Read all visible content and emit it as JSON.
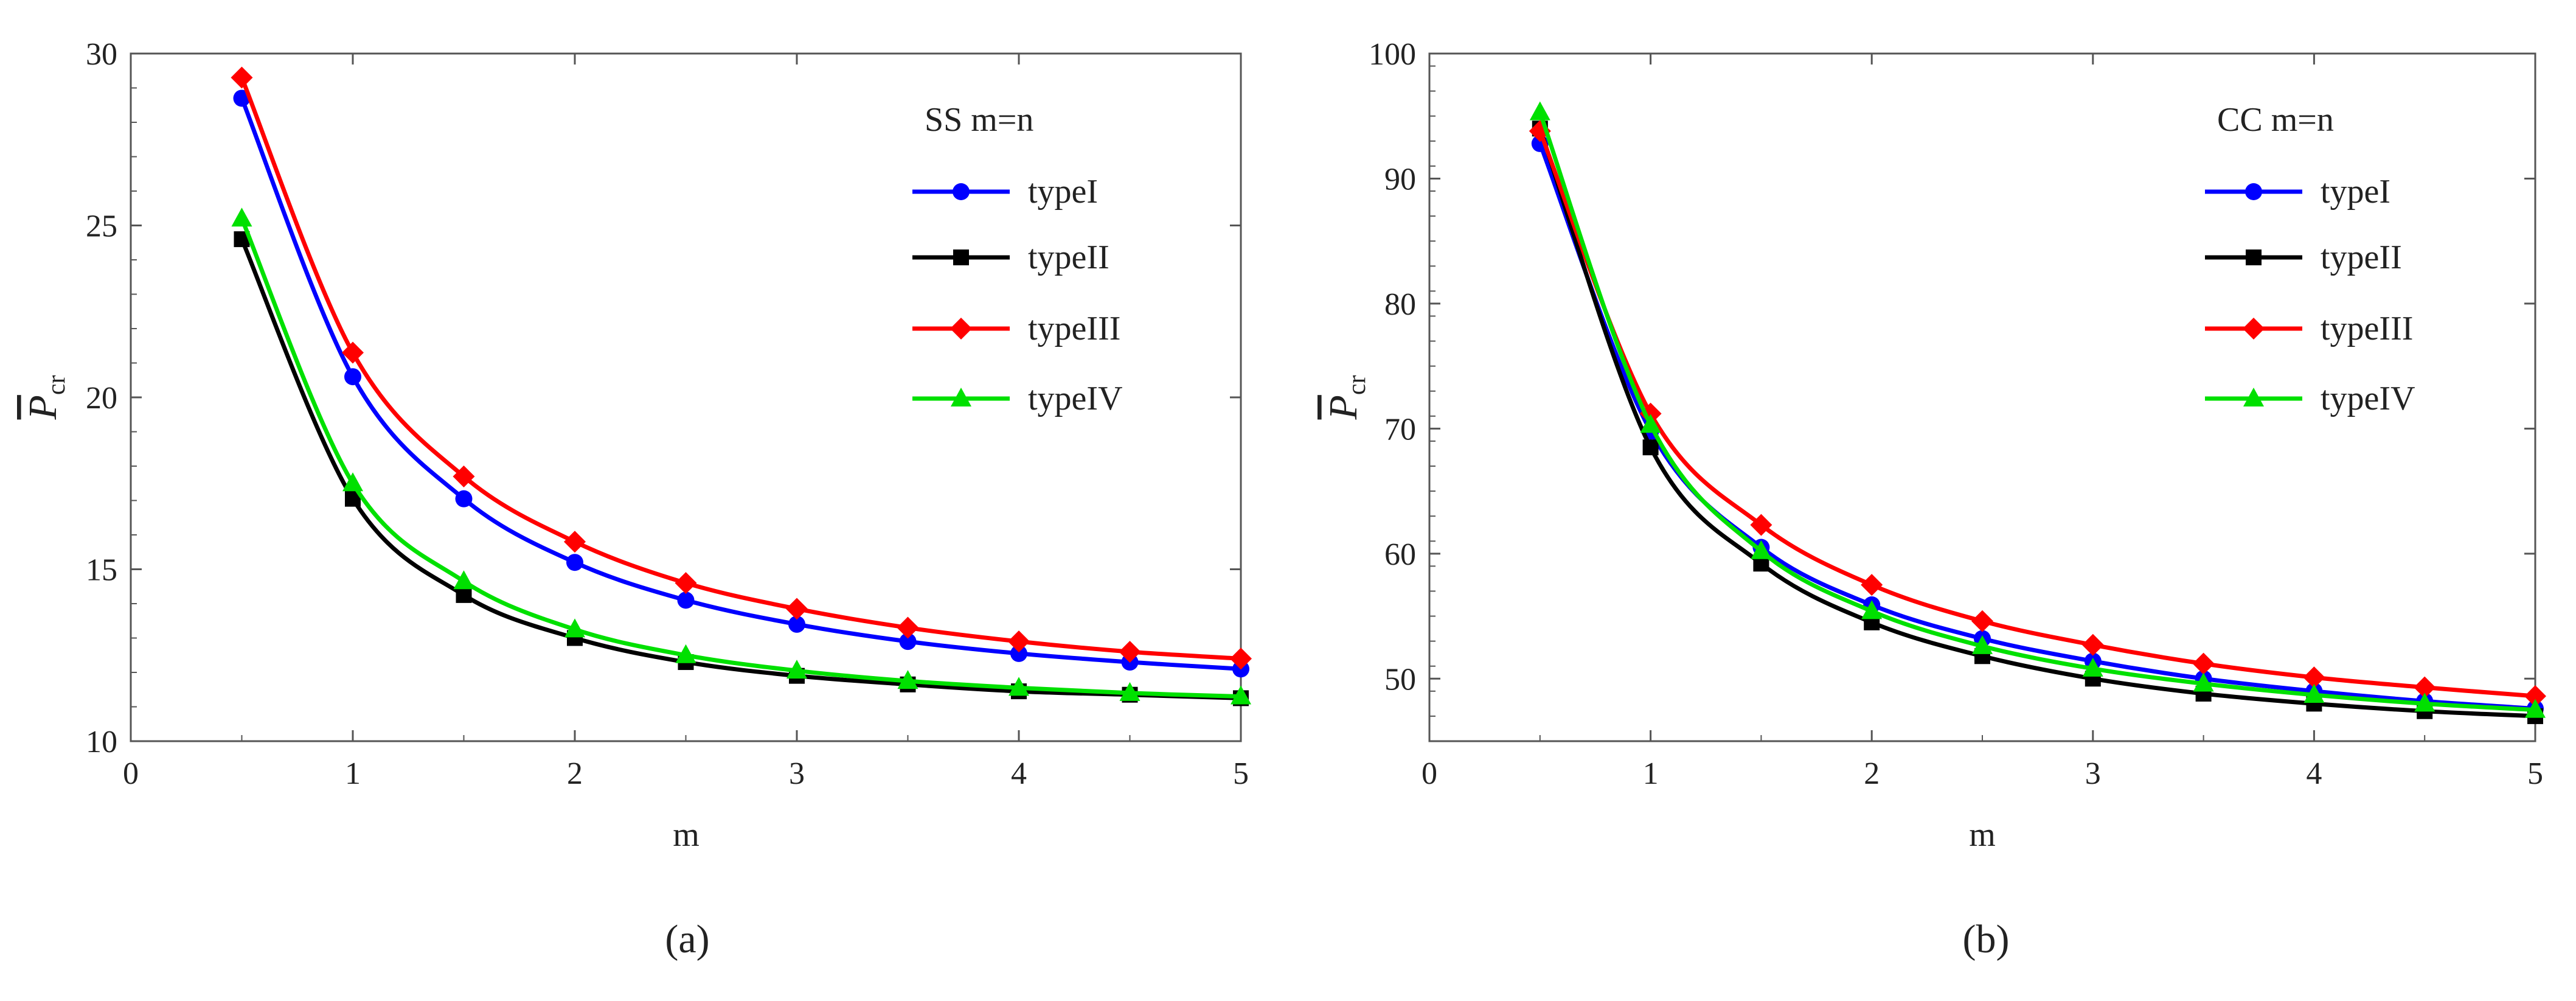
{
  "chart_data": [
    {
      "type": "line",
      "panel_label": "(a)",
      "legend_title": "SS   m=n",
      "xlabel": "m",
      "ylabel_main": "P",
      "ylabel_sub": "cr",
      "xlim": [
        0,
        5
      ],
      "ylim": [
        10,
        30
      ],
      "xticks": [
        0,
        1,
        2,
        3,
        4,
        5
      ],
      "yticks": [
        10,
        15,
        20,
        25,
        30
      ],
      "x": [
        0.5,
        1,
        1.5,
        2,
        2.5,
        3,
        3.5,
        4,
        4.5,
        5
      ],
      "series": [
        {
          "name": "typeI",
          "color": "#0000ff",
          "marker": "circle",
          "values": [
            28.7,
            20.6,
            17.05,
            15.2,
            14.1,
            13.4,
            12.9,
            12.55,
            12.3,
            12.1
          ]
        },
        {
          "name": "typeII",
          "color": "#000000",
          "marker": "square",
          "values": [
            24.6,
            17.05,
            14.25,
            13.0,
            12.3,
            11.9,
            11.65,
            11.45,
            11.35,
            11.25
          ]
        },
        {
          "name": "typeIII",
          "color": "#ff0000",
          "marker": "diamond",
          "values": [
            29.3,
            21.3,
            17.7,
            15.8,
            14.6,
            13.85,
            13.3,
            12.9,
            12.6,
            12.4
          ]
        },
        {
          "name": "typeIV",
          "color": "#00e000",
          "marker": "triangle",
          "values": [
            25.2,
            17.5,
            14.65,
            13.25,
            12.5,
            12.05,
            11.75,
            11.55,
            11.4,
            11.3
          ]
        }
      ]
    },
    {
      "type": "line",
      "panel_label": "(b)",
      "legend_title": "CC   m=n",
      "xlabel": "m",
      "ylabel_main": "P",
      "ylabel_sub": "cr",
      "xlim": [
        0,
        5
      ],
      "ylim": [
        45,
        100
      ],
      "xticks": [
        0,
        1,
        2,
        3,
        4,
        5
      ],
      "yticks": [
        50,
        60,
        70,
        80,
        90,
        100
      ],
      "x": [
        0.5,
        1,
        1.5,
        2,
        2.5,
        3,
        3.5,
        4,
        4.5,
        5
      ],
      "series": [
        {
          "name": "typeI",
          "color": "#0000ff",
          "marker": "circle",
          "values": [
            92.8,
            69.8,
            60.5,
            55.9,
            53.2,
            51.4,
            50.0,
            49.0,
            48.2,
            47.6
          ]
        },
        {
          "name": "typeII",
          "color": "#000000",
          "marker": "square",
          "values": [
            94.0,
            68.5,
            59.2,
            54.5,
            51.8,
            50.0,
            48.8,
            48.0,
            47.4,
            47.0
          ]
        },
        {
          "name": "typeIII",
          "color": "#ff0000",
          "marker": "diamond",
          "values": [
            93.8,
            71.2,
            62.3,
            57.5,
            54.6,
            52.7,
            51.2,
            50.1,
            49.3,
            48.6
          ]
        },
        {
          "name": "typeIV",
          "color": "#00e000",
          "marker": "triangle",
          "values": [
            95.3,
            70.3,
            60.2,
            55.4,
            52.6,
            50.8,
            49.6,
            48.7,
            48.0,
            47.5
          ]
        }
      ]
    }
  ]
}
